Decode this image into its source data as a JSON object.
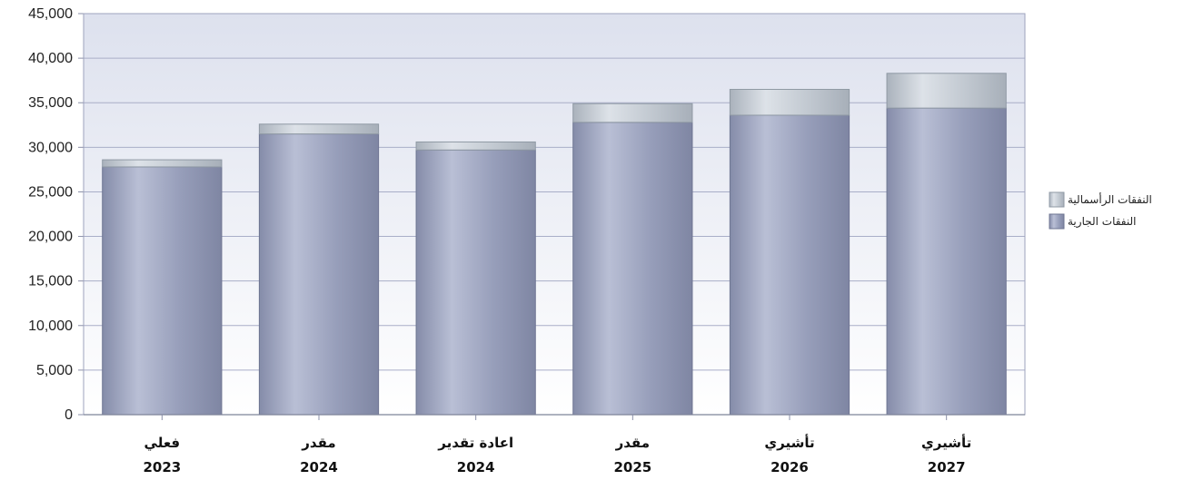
{
  "chart_data": {
    "type": "bar",
    "stacked": true,
    "categories": [
      {
        "label": "فعلي",
        "year": "2023"
      },
      {
        "label": "مقدر",
        "year": "2024"
      },
      {
        "label": "اعادة تقدير",
        "year": "2024"
      },
      {
        "label": "مقدر",
        "year": "2025"
      },
      {
        "label": "تأشيري",
        "year": "2026"
      },
      {
        "label": "تأشيري",
        "year": "2027"
      }
    ],
    "series": [
      {
        "name": "النفقات الجارية",
        "values": [
          27800,
          31500,
          29700,
          32800,
          33600,
          34400
        ],
        "color": "#8f96b3"
      },
      {
        "name": "النفقات الرأسمالية",
        "values": [
          800,
          1100,
          900,
          2100,
          2900,
          3900
        ],
        "color": "#bcc4cd"
      }
    ],
    "ylim": [
      0,
      45000
    ],
    "yticks": [
      0,
      5000,
      10000,
      15000,
      20000,
      25000,
      30000,
      35000,
      40000,
      45000
    ],
    "ytick_labels": [
      "0",
      "5,000",
      "10,000",
      "15,000",
      "20,000",
      "25,000",
      "30,000",
      "35,000",
      "40,000",
      "45,000"
    ],
    "grid": true,
    "legend_position": "right"
  }
}
